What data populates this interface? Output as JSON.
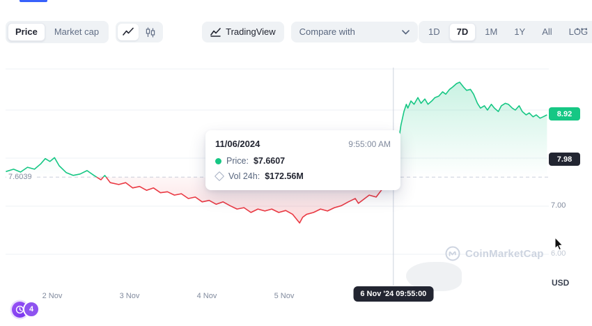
{
  "colors": {
    "green": "#16c784",
    "red": "#ea3943",
    "badge_dark": "#222531",
    "accent_blue": "#3861fb",
    "purple": "#8247e5",
    "watermark_gray": "#cdd4e0"
  },
  "toolbar": {
    "price_label": "Price",
    "market_cap_label": "Market cap",
    "tradingview_label": "TradingView",
    "compare_label": "Compare with",
    "ranges": [
      "1D",
      "7D",
      "1M",
      "1Y",
      "All",
      "LOG"
    ],
    "selected_range": "7D",
    "more_icon": "⋯"
  },
  "tooltip": {
    "date": "11/06/2024",
    "time": "9:55:00 AM",
    "price_label": "Price:",
    "price_value": "$7.6607",
    "vol_label": "Vol 24h:",
    "vol_value": "$172.56M"
  },
  "chart_data": {
    "type": "area",
    "title": "",
    "unit_label": "USD",
    "grid": true,
    "ylim": [
      6.0,
      9.9
    ],
    "x_ticks": [
      {
        "label": "2 Nov",
        "day": 2
      },
      {
        "label": "3 Nov",
        "day": 3
      },
      {
        "label": "4 Nov",
        "day": 4
      },
      {
        "label": "5 Nov",
        "day": 5
      }
    ],
    "y_ticks": [
      {
        "label": "7.00",
        "price": 7.0,
        "muted": false
      },
      {
        "label": "6.00",
        "price": 6.0,
        "muted": true
      }
    ],
    "baseline": {
      "label": "7.6039",
      "price": 7.6039
    },
    "last_price_badge": {
      "label": "8.92",
      "price": 8.92
    },
    "crosshair": {
      "price_label": "7.98",
      "price": 7.98,
      "day": 6.413,
      "time_label": "6 Nov '24 09:55:00"
    },
    "series": [
      {
        "name": "Price",
        "points": [
          [
            1.4,
            7.72
          ],
          [
            1.5,
            7.77
          ],
          [
            1.59,
            7.71
          ],
          [
            1.68,
            7.81
          ],
          [
            1.77,
            7.77
          ],
          [
            1.85,
            7.88
          ],
          [
            1.91,
            7.99
          ],
          [
            1.97,
            7.93
          ],
          [
            2.03,
            8.01
          ],
          [
            2.09,
            7.84
          ],
          [
            2.18,
            7.7
          ],
          [
            2.27,
            7.64
          ],
          [
            2.36,
            7.67
          ],
          [
            2.45,
            7.74
          ],
          [
            2.54,
            7.64
          ],
          [
            2.63,
            7.55
          ],
          [
            2.68,
            7.64
          ],
          [
            2.75,
            7.49
          ],
          [
            2.86,
            7.45
          ],
          [
            2.95,
            7.49
          ],
          [
            3.04,
            7.38
          ],
          [
            3.13,
            7.41
          ],
          [
            3.22,
            7.33
          ],
          [
            3.31,
            7.38
          ],
          [
            3.4,
            7.28
          ],
          [
            3.49,
            7.3
          ],
          [
            3.58,
            7.23
          ],
          [
            3.67,
            7.26
          ],
          [
            3.76,
            7.16
          ],
          [
            3.85,
            7.19
          ],
          [
            3.94,
            7.09
          ],
          [
            4.03,
            7.12
          ],
          [
            4.12,
            7.04
          ],
          [
            4.21,
            7.09
          ],
          [
            4.3,
            7.01
          ],
          [
            4.39,
            6.94
          ],
          [
            4.48,
            6.97
          ],
          [
            4.57,
            6.87
          ],
          [
            4.66,
            6.94
          ],
          [
            4.75,
            6.9
          ],
          [
            4.84,
            6.94
          ],
          [
            4.93,
            6.87
          ],
          [
            5.02,
            6.91
          ],
          [
            5.11,
            6.83
          ],
          [
            5.2,
            6.65
          ],
          [
            5.24,
            6.77
          ],
          [
            5.29,
            6.83
          ],
          [
            5.38,
            6.87
          ],
          [
            5.47,
            6.94
          ],
          [
            5.56,
            6.9
          ],
          [
            5.65,
            6.97
          ],
          [
            5.74,
            7.01
          ],
          [
            5.83,
            7.09
          ],
          [
            5.92,
            7.16
          ],
          [
            5.96,
            7.06
          ],
          [
            6.01,
            7.12
          ],
          [
            6.1,
            7.23
          ],
          [
            6.19,
            7.19
          ],
          [
            6.28,
            7.38
          ],
          [
            6.32,
            7.55
          ],
          [
            6.37,
            7.64
          ],
          [
            6.41,
            7.66
          ],
          [
            6.44,
            7.96
          ],
          [
            6.46,
            8.25
          ],
          [
            6.49,
            8.46
          ],
          [
            6.51,
            8.68
          ],
          [
            6.55,
            8.97
          ],
          [
            6.58,
            9.12
          ],
          [
            6.6,
            9.04
          ],
          [
            6.64,
            9.19
          ],
          [
            6.68,
            9.12
          ],
          [
            6.73,
            9.26
          ],
          [
            6.77,
            9.14
          ],
          [
            6.82,
            9.23
          ],
          [
            6.86,
            9.12
          ],
          [
            6.91,
            9.19
          ],
          [
            6.95,
            9.26
          ],
          [
            7.0,
            9.29
          ],
          [
            7.05,
            9.38
          ],
          [
            7.09,
            9.33
          ],
          [
            7.14,
            9.43
          ],
          [
            7.18,
            9.48
          ],
          [
            7.23,
            9.55
          ],
          [
            7.27,
            9.58
          ],
          [
            7.32,
            9.48
          ],
          [
            7.36,
            9.41
          ],
          [
            7.41,
            9.43
          ],
          [
            7.45,
            9.33
          ],
          [
            7.5,
            9.14
          ],
          [
            7.54,
            9.04
          ],
          [
            7.59,
            9.09
          ],
          [
            7.63,
            9.0
          ],
          [
            7.68,
            9.12
          ],
          [
            7.72,
            9.04
          ],
          [
            7.77,
            8.97
          ],
          [
            7.81,
            9.09
          ],
          [
            7.86,
            9.14
          ],
          [
            7.9,
            9.12
          ],
          [
            7.95,
            9.04
          ],
          [
            7.99,
            9.0
          ],
          [
            8.04,
            9.09
          ],
          [
            8.08,
            8.97
          ],
          [
            8.13,
            8.9
          ],
          [
            8.17,
            8.94
          ],
          [
            8.22,
            8.86
          ],
          [
            8.26,
            8.9
          ],
          [
            8.31,
            8.83
          ],
          [
            8.35,
            8.86
          ],
          [
            8.4,
            8.9
          ]
        ]
      }
    ]
  },
  "watermark": {
    "label": "CoinMarketCap"
  },
  "history_badge": {
    "count": "4"
  }
}
